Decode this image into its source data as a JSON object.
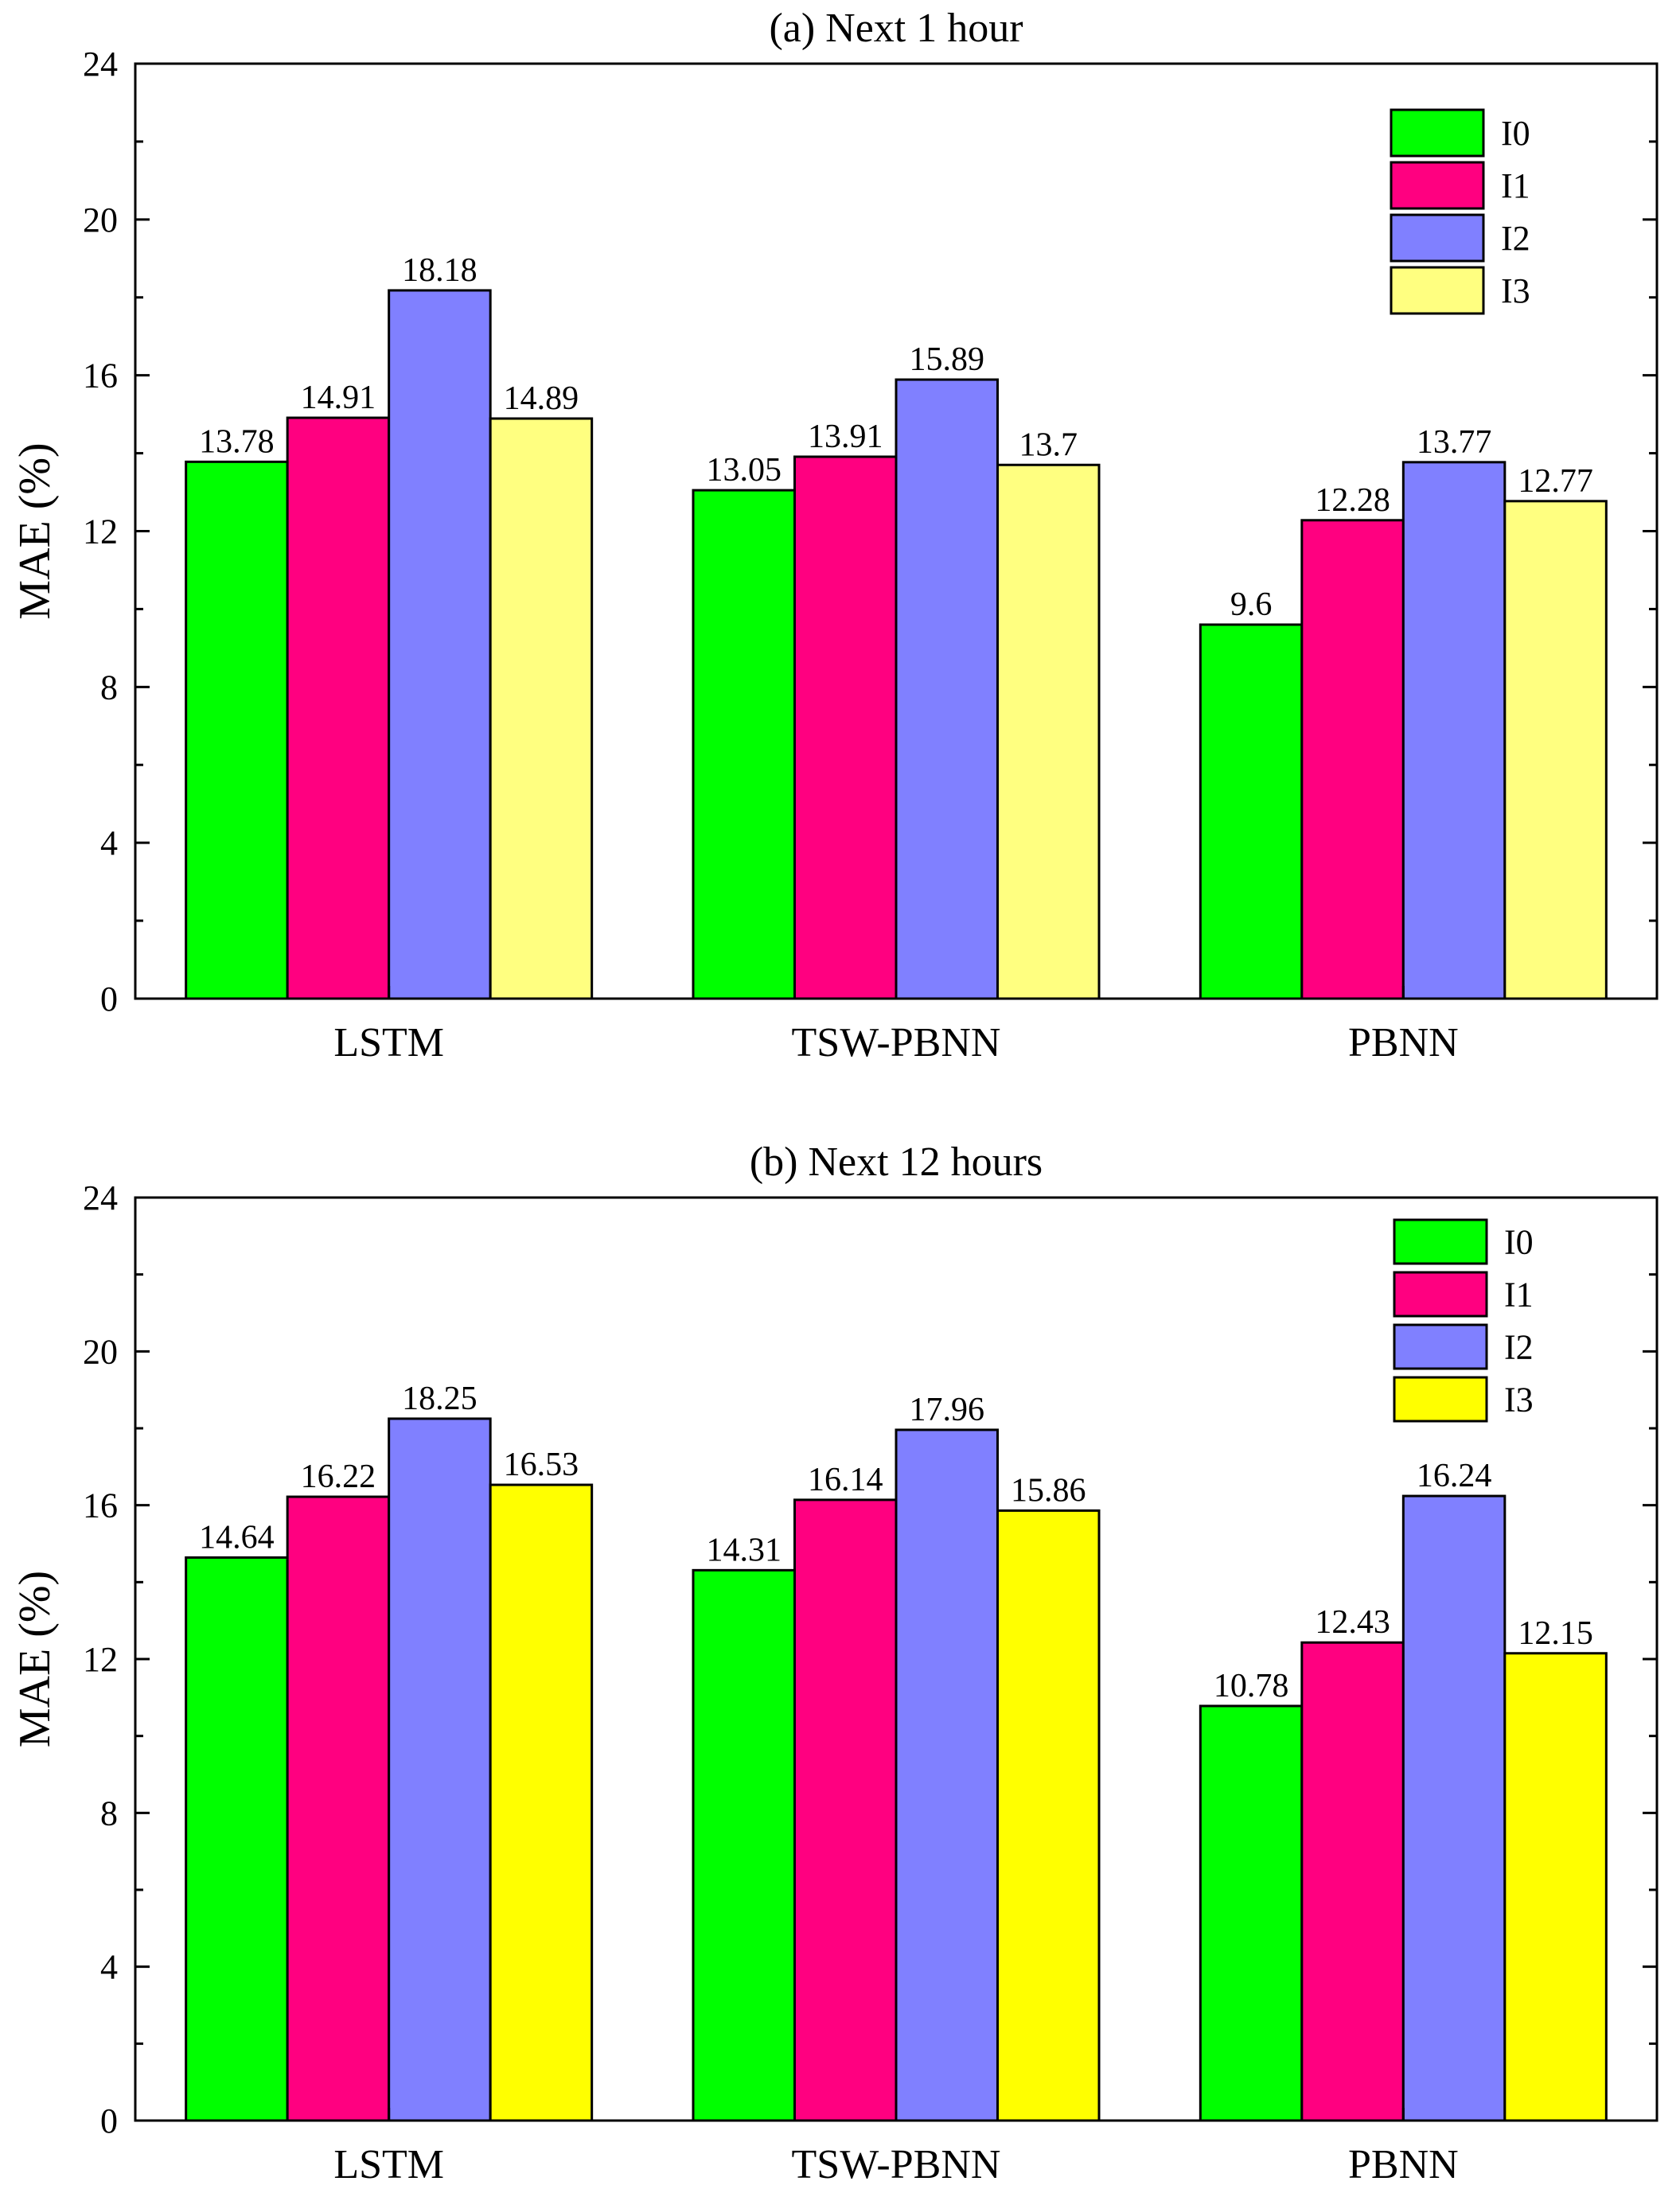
{
  "chart_data": [
    {
      "type": "bar",
      "title": "(a) Next 1 hour",
      "xlabel": "",
      "ylabel": "MAE (%)",
      "ylim": [
        0,
        24
      ],
      "yticks": [
        "0",
        "4",
        "8",
        "12",
        "16",
        "20",
        "24"
      ],
      "categories": [
        "LSTM",
        "TSW-PBNN",
        "PBNN"
      ],
      "legend_position": "top-right",
      "series": [
        {
          "name": "I0",
          "color": "#00ff00",
          "values": [
            13.78,
            13.05,
            9.6
          ],
          "labels": [
            "13.78",
            "13.05",
            "9.6"
          ]
        },
        {
          "name": "I1",
          "color": "#ff0080",
          "values": [
            14.91,
            13.91,
            12.28
          ],
          "labels": [
            "14.91",
            "13.91",
            "12.28"
          ]
        },
        {
          "name": "I2",
          "color": "#8080ff",
          "values": [
            18.18,
            15.89,
            13.77
          ],
          "labels": [
            "18.18",
            "15.89",
            "13.77"
          ]
        },
        {
          "name": "I3",
          "color": "#ffff80",
          "values": [
            14.89,
            13.7,
            12.77
          ],
          "labels": [
            "14.89",
            "13.7",
            "12.77"
          ]
        }
      ]
    },
    {
      "type": "bar",
      "title": "(b) Next 12 hours",
      "xlabel": "",
      "ylabel": "MAE (%)",
      "ylim": [
        0,
        24
      ],
      "yticks": [
        "0",
        "4",
        "8",
        "12",
        "16",
        "20",
        "24"
      ],
      "categories": [
        "LSTM",
        "TSW-PBNN",
        "PBNN"
      ],
      "legend_position": "top-right",
      "series": [
        {
          "name": "I0",
          "color": "#00ff00",
          "values": [
            14.64,
            14.31,
            10.78
          ],
          "labels": [
            "14.64",
            "14.31",
            "10.78"
          ]
        },
        {
          "name": "I1",
          "color": "#ff0080",
          "values": [
            16.22,
            16.14,
            12.43
          ],
          "labels": [
            "16.22",
            "16.14",
            "12.43"
          ]
        },
        {
          "name": "I2",
          "color": "#8080ff",
          "values": [
            18.25,
            17.96,
            16.24
          ],
          "labels": [
            "18.25",
            "17.96",
            "16.24"
          ]
        },
        {
          "name": "I3",
          "color": "#ffff00",
          "values": [
            16.53,
            15.86,
            12.15
          ],
          "labels": [
            "16.53",
            "15.86",
            "12.15"
          ]
        }
      ]
    }
  ]
}
